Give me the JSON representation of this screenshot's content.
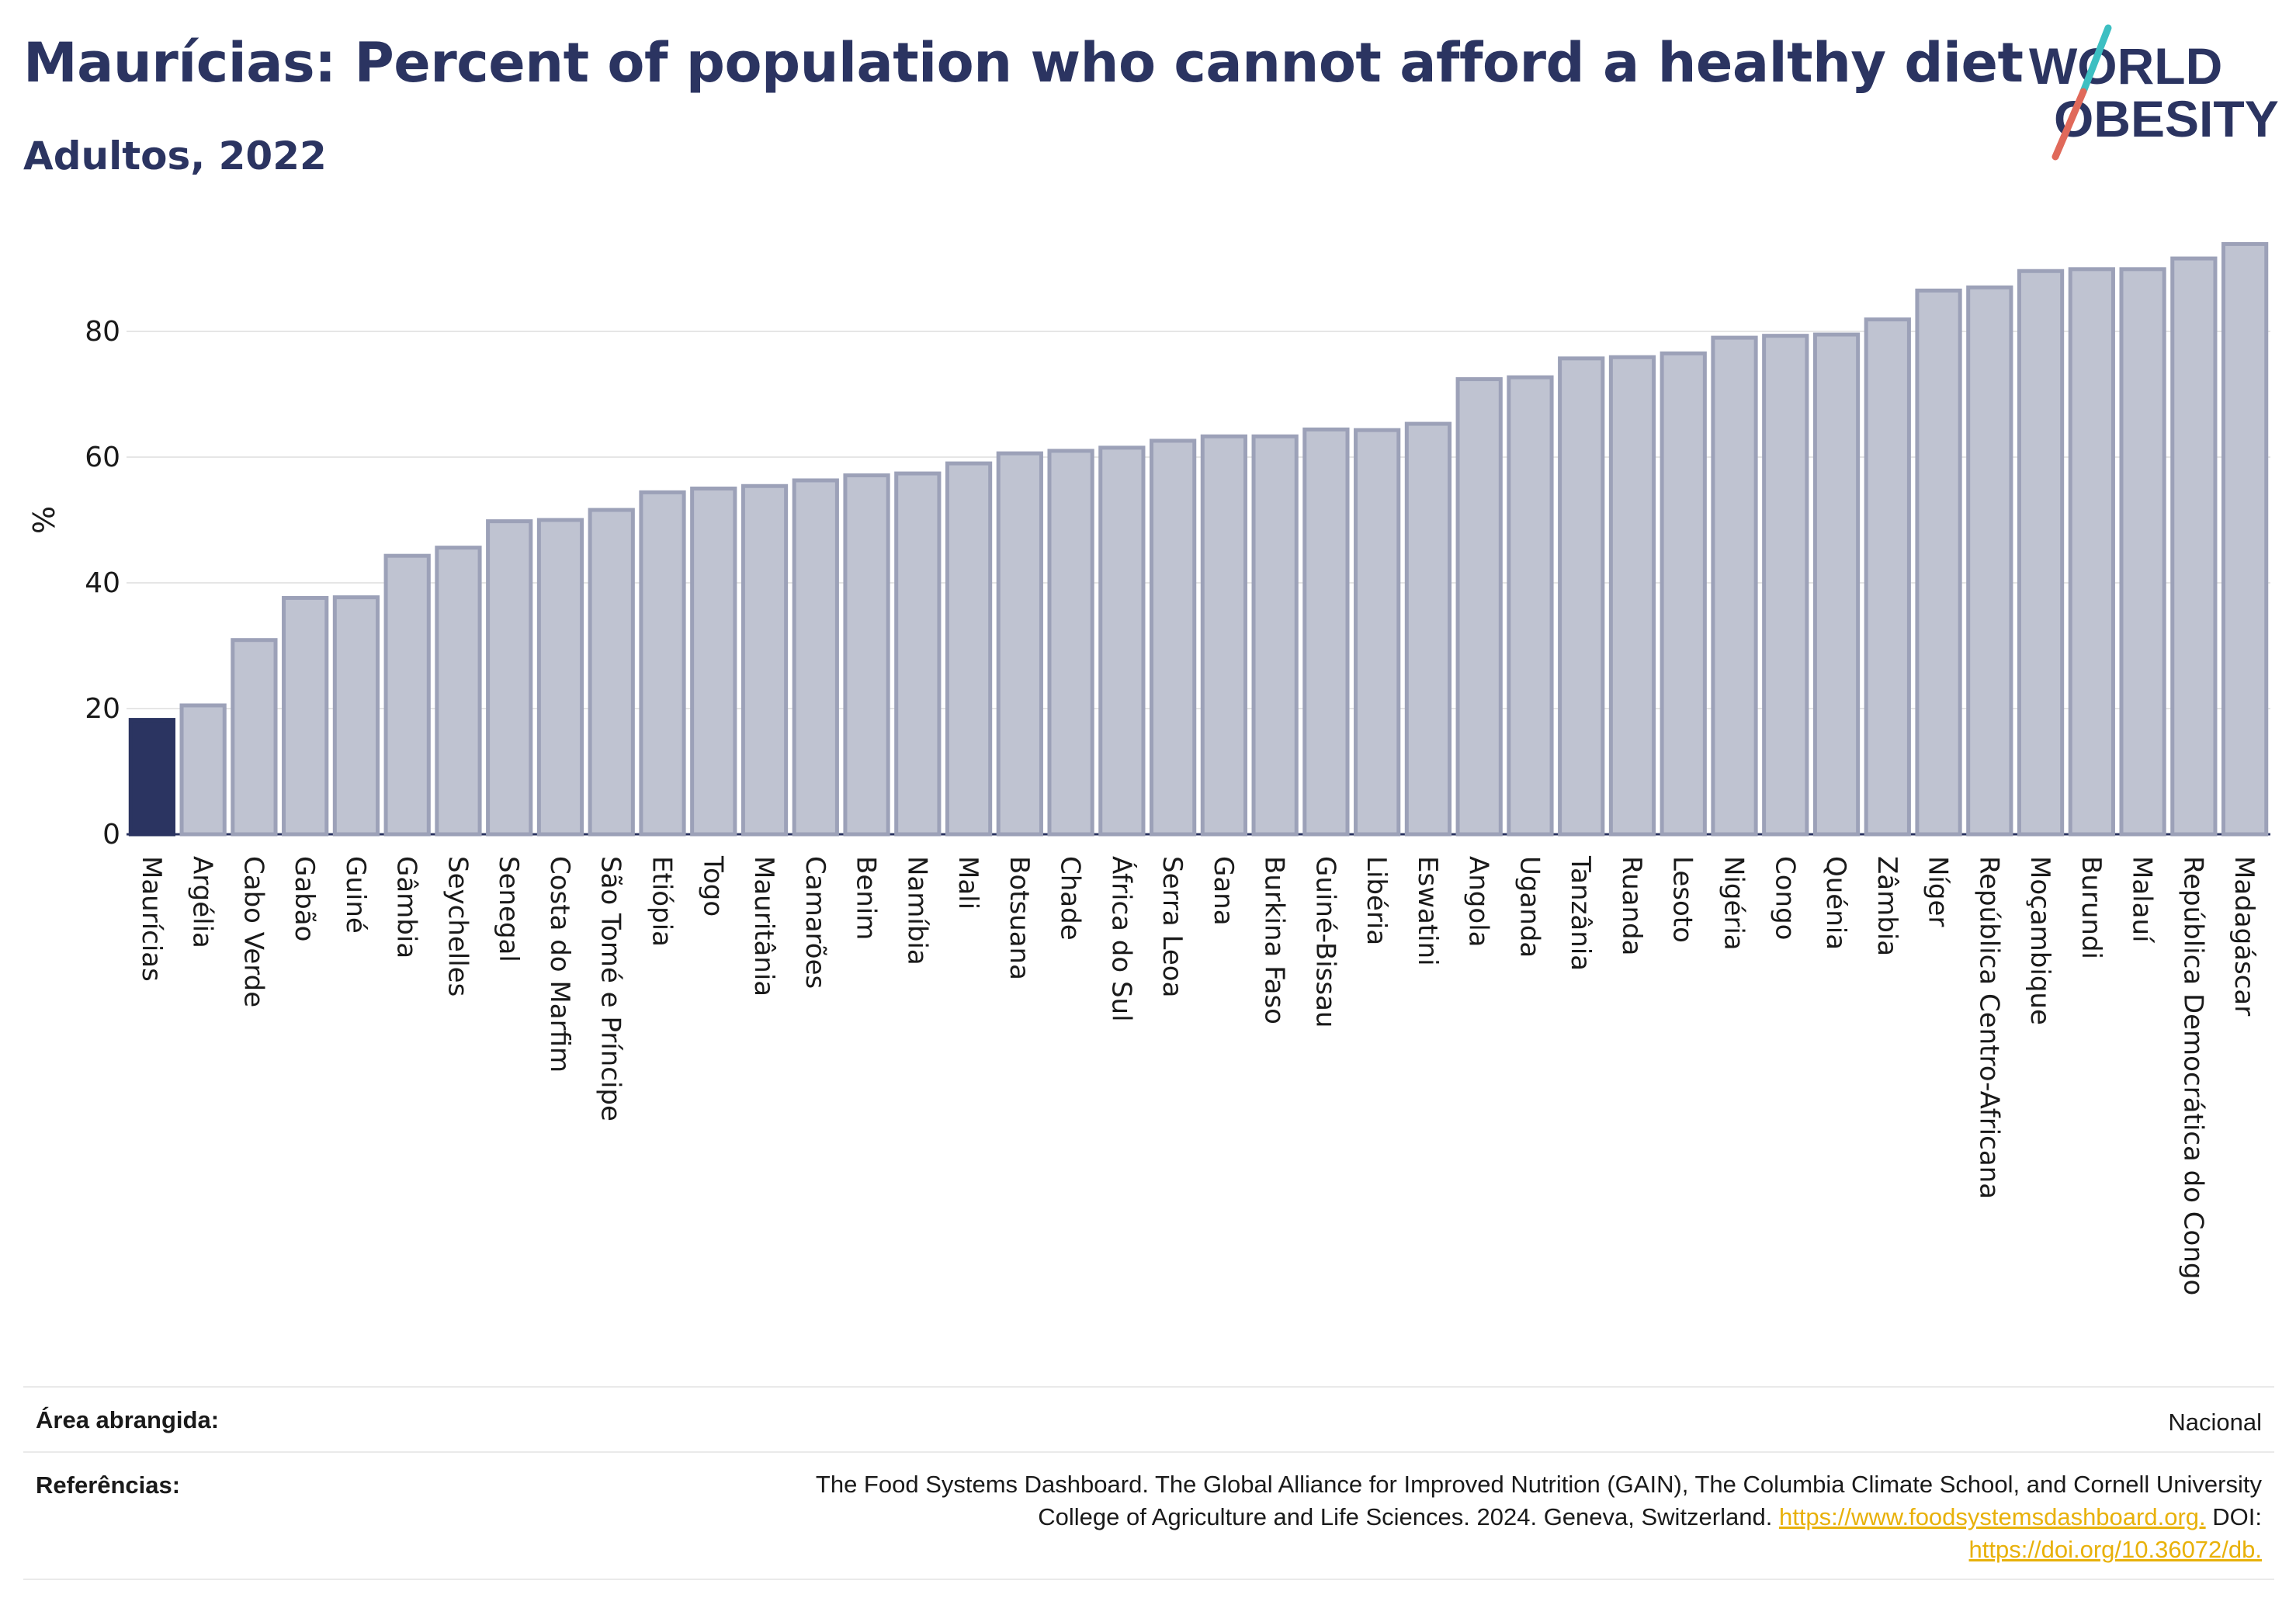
{
  "header": {
    "title": "Maurícias: Percent of population who cannot afford a healthy diet",
    "subtitle": "Adultos, 2022"
  },
  "logo": {
    "line1": "WORLD",
    "line2": "OBESITY"
  },
  "colors": {
    "highlight": "#2b3461",
    "bar_fill": "#bfc3d1",
    "bar_stroke": "#9ca1b8",
    "text": "#2b3461",
    "link": "#e8b10a",
    "logo_teal": "#3dbfc2",
    "logo_coral": "#e0695a"
  },
  "chart_data": {
    "type": "bar",
    "ylabel": "%",
    "ylim": [
      0,
      100
    ],
    "yticks": [
      0,
      20,
      40,
      60,
      80
    ],
    "grid": true,
    "highlight": "Maurícias",
    "categories": [
      "Maurícias",
      "Argélia",
      "Cabo Verde",
      "Gabão",
      "Guiné",
      "Gâmbia",
      "Seychelles",
      "Senegal",
      "Costa do Marfim",
      "São Tomé e Príncipe",
      "Etiópia",
      "Togo",
      "Mauritânia",
      "Camarões",
      "Benim",
      "Namíbia",
      "Mali",
      "Botsuana",
      "Chade",
      "África do Sul",
      "Serra Leoa",
      "Gana",
      "Burkina Faso",
      "Guiné-Bissau",
      "Libéria",
      "Eswatini",
      "Angola",
      "Uganda",
      "Tanzânia",
      "Ruanda",
      "Lesoto",
      "Nigéria",
      "Congo",
      "Quénia",
      "Zâmbia",
      "Níger",
      "República Centro-Africana",
      "Moçambique",
      "Burundi",
      "Malauí",
      "República Democrática do Congo",
      "Madagáscar"
    ],
    "values": [
      18.2,
      20.5,
      30.9,
      37.6,
      37.7,
      44.3,
      45.6,
      49.8,
      50.0,
      51.6,
      54.4,
      55.0,
      55.4,
      56.3,
      57.1,
      57.4,
      59.0,
      60.6,
      61.0,
      61.5,
      62.6,
      63.3,
      63.3,
      64.4,
      64.3,
      65.3,
      72.4,
      72.7,
      75.7,
      75.9,
      76.5,
      79.0,
      79.3,
      79.5,
      81.9,
      86.5,
      87.0,
      89.6,
      89.9,
      89.9,
      91.6,
      93.9
    ]
  },
  "footer": {
    "area_label": "Área abrangida:",
    "area_value": "Nacional",
    "refs_label": "Referências:",
    "refs_line1": "The Food Systems Dashboard. The Global Alliance for Improved Nutrition (GAIN), The Columbia Climate School, and Cornell University",
    "refs_line2_text": "College of Agriculture and Life Sciences. 2024. Geneva, Switzerland.",
    "refs_url1": "https://www.foodsystemsdashboard.org.",
    "refs_doi_label": "DOI:",
    "refs_url2": "https://doi.org/10.36072/db."
  }
}
